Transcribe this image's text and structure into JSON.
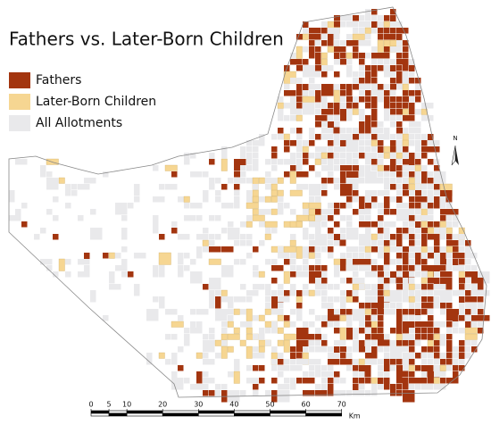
{
  "title": "Fathers vs. Later-Born Children",
  "legend": [
    {
      "label": "Fathers",
      "color": "#a3350f"
    },
    {
      "label": "Later-Born Children",
      "color": "#f6d692"
    },
    {
      "label": "All Allotments",
      "color": "#e9e9eb"
    }
  ],
  "north_arrow": "N",
  "scale_bar": {
    "ticks": [
      0,
      5,
      10,
      20,
      30,
      40,
      50,
      60,
      70
    ],
    "unit": "Km"
  }
}
